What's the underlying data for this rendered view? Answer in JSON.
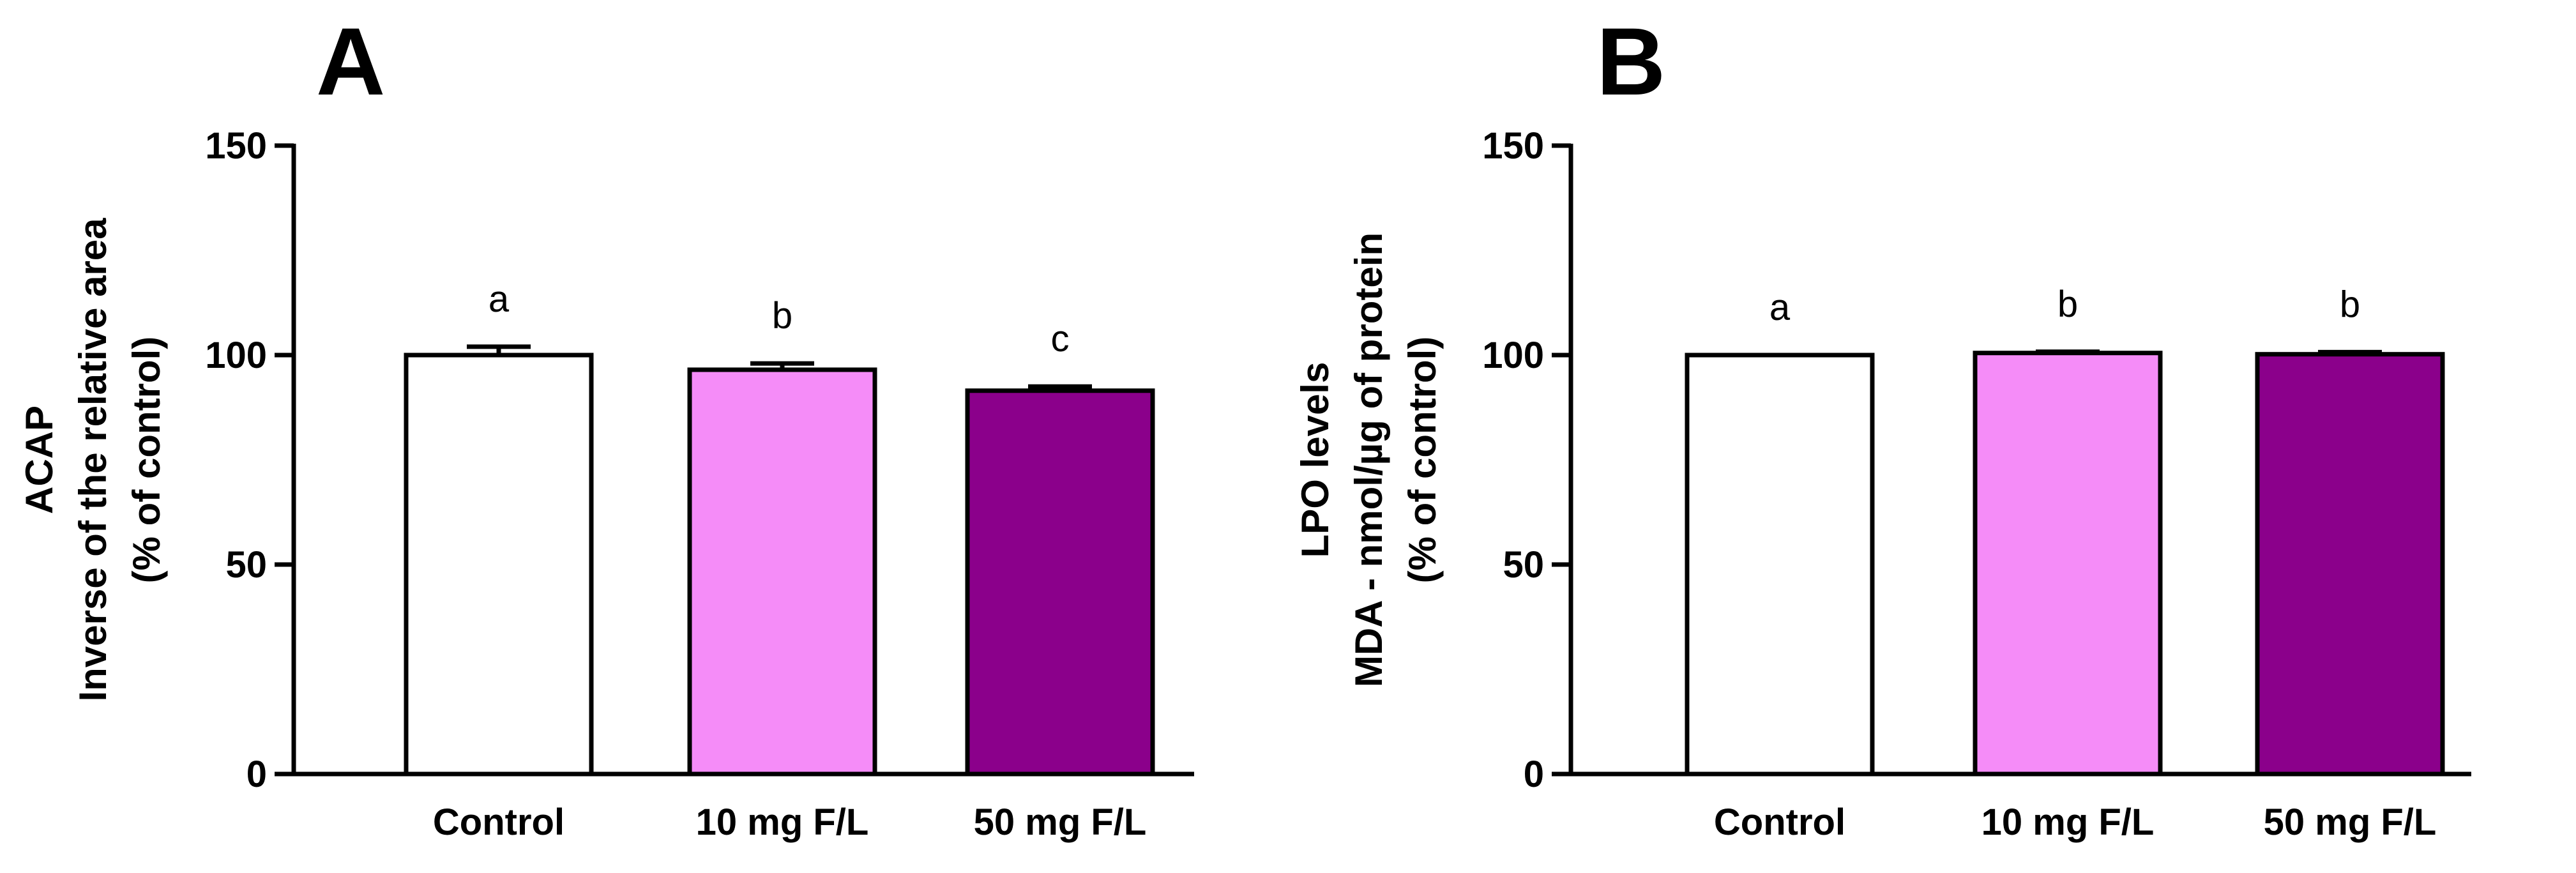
{
  "chart_data": [
    {
      "type": "bar",
      "panel": "A",
      "title": "",
      "ylabel_lines": [
        "ACAP",
        "Inverse of the relative area",
        "(% of control)"
      ],
      "xlabel": "",
      "categories": [
        "Control",
        "10 mg F/L",
        "50 mg F/L"
      ],
      "values": [
        100,
        96.5,
        91.5
      ],
      "errors": [
        2,
        1.5,
        1
      ],
      "annotations": [
        "a",
        "b",
        "c"
      ],
      "colors": [
        "#ffffff",
        "#f58cf8",
        "#8b008b"
      ],
      "ylim": [
        0,
        150
      ],
      "yticks": [
        0,
        50,
        100,
        150
      ],
      "grid": false,
      "legend": "none"
    },
    {
      "type": "bar",
      "panel": "B",
      "title": "",
      "ylabel_lines": [
        "LPO levels",
        "MDA - nmol/µg of protein",
        "(% of control)"
      ],
      "xlabel": "",
      "categories": [
        "Control",
        "10 mg F/L",
        "50 mg F/L"
      ],
      "values": [
        100,
        100.5,
        100.2
      ],
      "errors": [
        0,
        0.3,
        0.5
      ],
      "annotations": [
        "a",
        "b",
        "b"
      ],
      "colors": [
        "#ffffff",
        "#f58cf8",
        "#8b008b"
      ],
      "ylim": [
        0,
        150
      ],
      "yticks": [
        0,
        50,
        100,
        150
      ],
      "grid": false,
      "legend": "none"
    }
  ]
}
